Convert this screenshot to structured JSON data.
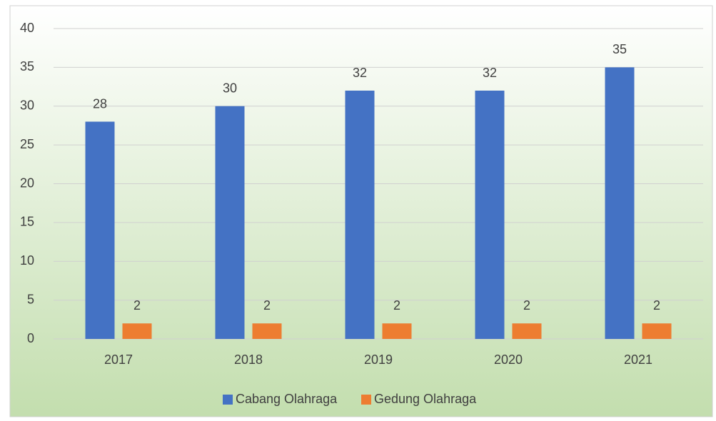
{
  "chart_data": {
    "type": "bar",
    "categories": [
      "2017",
      "2018",
      "2019",
      "2020",
      "2021"
    ],
    "series": [
      {
        "name": "Cabang Olahraga",
        "color": "#4472c4",
        "values": [
          28,
          30,
          32,
          32,
          35
        ]
      },
      {
        "name": "Gedung Olahraga",
        "color": "#ed7d31",
        "values": [
          2,
          2,
          2,
          2,
          2
        ]
      }
    ],
    "ylim": [
      0,
      40
    ],
    "yticks": [
      0,
      5,
      10,
      15,
      20,
      25,
      30,
      35,
      40
    ],
    "grid": true,
    "legend": "bottom",
    "data_labels": true
  }
}
